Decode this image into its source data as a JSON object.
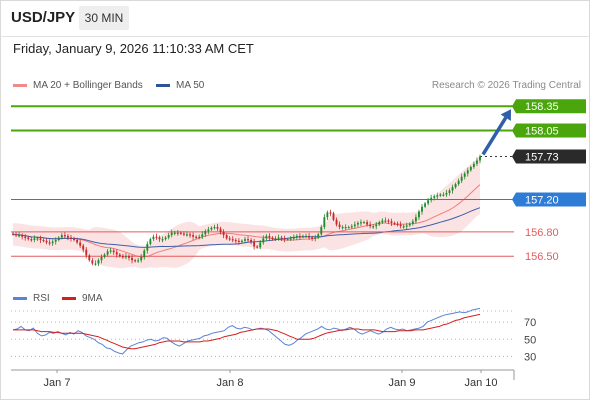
{
  "header": {
    "symbol": "USD/JPY",
    "timeframe": "30 MIN",
    "datetime": "Friday, January 9, 2026 11:10:33 AM CET",
    "credit": "Research © 2026 Trading Central"
  },
  "legend": {
    "ma20": "MA 20 + Bollinger Bands",
    "ma50": "MA 50",
    "rsi": "RSI",
    "rsi_ma": "9MA"
  },
  "colors": {
    "candle_up": "#1f8a2a",
    "candle_down": "#c62828",
    "ma20": "#ef7c7c",
    "ma50": "#3d5fa8",
    "band_fill": "#fbdada",
    "resistance": "#4ba60e",
    "pivot": "#2f7cd6",
    "support": "#e45a5a",
    "current": "#2a2a2a",
    "arrow": "#2f5fa8",
    "rsi": "#5b83d6",
    "rsi_ma": "#d21f1f"
  },
  "chart_data": [
    {
      "type": "candlestick",
      "name": "USD/JPY 30 MIN",
      "ylim": [
        156.12,
        158.55
      ],
      "x_ticks": [
        "Jan 7",
        "Jan 8",
        "Jan 9",
        "Jan 10"
      ],
      "closes": [
        156.77,
        156.76,
        156.76,
        156.74,
        156.73,
        156.71,
        156.7,
        156.72,
        156.72,
        156.7,
        156.69,
        156.67,
        156.66,
        156.68,
        156.7,
        156.73,
        156.76,
        156.75,
        156.73,
        156.72,
        156.7,
        156.67,
        156.63,
        156.58,
        156.51,
        156.45,
        156.41,
        156.41,
        156.45,
        156.49,
        156.52,
        156.56,
        156.57,
        156.55,
        156.52,
        156.5,
        156.49,
        156.5,
        156.48,
        156.45,
        156.44,
        156.45,
        156.49,
        156.57,
        156.65,
        156.71,
        156.74,
        156.73,
        156.71,
        156.71,
        156.73,
        156.76,
        156.79,
        156.79,
        156.79,
        156.78,
        156.77,
        156.77,
        156.76,
        156.74,
        156.73,
        156.74,
        156.77,
        156.81,
        156.83,
        156.85,
        156.86,
        156.84,
        156.8,
        156.76,
        156.72,
        156.71,
        156.7,
        156.69,
        156.68,
        156.69,
        156.71,
        156.7,
        156.68,
        156.62,
        156.61,
        156.67,
        156.72,
        156.75,
        156.73,
        156.71,
        156.72,
        156.73,
        156.72,
        156.71,
        156.71,
        156.72,
        156.73,
        156.75,
        156.74,
        156.75,
        156.75,
        156.73,
        156.72,
        156.73,
        156.77,
        156.86,
        156.98,
        157.04,
        157.03,
        156.95,
        156.89,
        156.86,
        156.86,
        156.86,
        156.86,
        156.87,
        156.89,
        156.91,
        156.92,
        156.92,
        156.89,
        156.87,
        156.87,
        156.89,
        156.92,
        156.94,
        156.94,
        156.93,
        156.91,
        156.9,
        156.89,
        156.87,
        156.87,
        156.88,
        156.9,
        156.93,
        156.98,
        157.05,
        157.11,
        157.15,
        157.19,
        157.22,
        157.24,
        157.25,
        157.26,
        157.26,
        157.28,
        157.31,
        157.35,
        157.39,
        157.43,
        157.48,
        157.52,
        157.56,
        157.6,
        157.64,
        157.68,
        157.73
      ]
    },
    {
      "type": "line",
      "name": "RSI",
      "ylim": [
        20,
        90
      ],
      "y_ticks": [
        70,
        50,
        30
      ],
      "series": [
        {
          "name": "RSI",
          "values": [
            61,
            62,
            65,
            61,
            60,
            63,
            57,
            54,
            55,
            58,
            57,
            59,
            57,
            55,
            58,
            56,
            60,
            58,
            54,
            52,
            50,
            46,
            44,
            40,
            39,
            36,
            34,
            33,
            38,
            42,
            44,
            46,
            47,
            49,
            50,
            48,
            49,
            52,
            51,
            47,
            44,
            42,
            45,
            48,
            49,
            50,
            51,
            54,
            55,
            57,
            58,
            59,
            60,
            64,
            66,
            63,
            62,
            64,
            63,
            61,
            62,
            63,
            62,
            60,
            56,
            52,
            48,
            44,
            43,
            45,
            49,
            52,
            56,
            58,
            60,
            62,
            65,
            62,
            61,
            63,
            62,
            60,
            62,
            64,
            62,
            58,
            56,
            58,
            60,
            58,
            56,
            58,
            62,
            64,
            62,
            61,
            62,
            60,
            61,
            62,
            63,
            65,
            70,
            72,
            74,
            76,
            78,
            79,
            80,
            81,
            82,
            81,
            82,
            84,
            85,
            86
          ]
        },
        {
          "name": "9MA",
          "values": [
            61,
            61,
            61,
            61,
            61,
            61,
            60,
            59,
            59,
            59,
            58,
            58,
            57,
            57,
            57,
            57,
            57,
            57,
            56,
            55,
            54,
            53,
            51,
            49,
            47,
            45,
            43,
            41,
            40,
            39,
            39,
            40,
            41,
            42,
            43,
            44,
            46,
            47,
            48,
            48,
            48,
            48,
            47,
            47,
            47,
            47,
            47,
            48,
            48,
            49,
            50,
            51,
            53,
            54,
            55,
            56,
            58,
            59,
            60,
            61,
            62,
            62,
            62,
            62,
            61,
            60,
            58,
            56,
            54,
            52,
            50,
            50,
            50,
            50,
            51,
            53,
            55,
            57,
            58,
            59,
            60,
            61,
            61,
            62,
            62,
            62,
            61,
            61,
            61,
            61,
            60,
            59,
            59,
            59,
            59,
            60,
            60,
            60,
            60,
            61,
            61,
            61,
            62,
            63,
            64,
            65,
            67,
            68,
            70,
            72,
            73,
            75,
            76,
            77,
            78,
            79
          ]
        }
      ]
    }
  ],
  "levels": [
    {
      "value": "158.35",
      "type": "resistance"
    },
    {
      "value": "158.05",
      "type": "resistance"
    },
    {
      "value": "157.73",
      "type": "current"
    },
    {
      "value": "157.20",
      "type": "pivot"
    },
    {
      "value": "156.80",
      "type": "support"
    },
    {
      "value": "156.50",
      "type": "support"
    }
  ]
}
